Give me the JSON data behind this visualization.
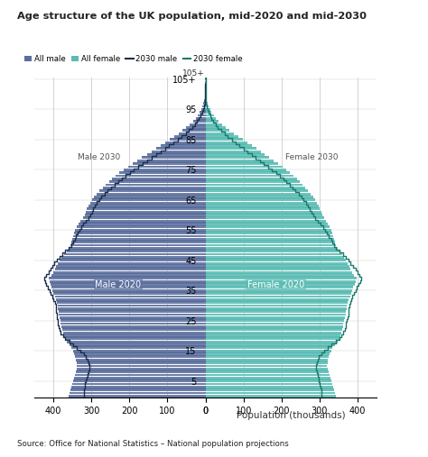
{
  "title": "Age structure of the UK population, mid-2020 and mid-2030",
  "source": "Source: Office for National Statistics – National population projections",
  "xlabel": "Population (thousands)",
  "male_label_2020": "Male 2020",
  "female_label_2020": "Female 2020",
  "male_label_2030": "Male 2030",
  "female_label_2030": "Female 2030",
  "legend_labels": [
    "All male",
    "All female",
    "2030 male",
    "2030 female"
  ],
  "color_male_2020": "#5a6e9c",
  "color_female_2020": "#5bbcb4",
  "color_male_2030_line": "#1a2e4a",
  "color_female_2030_line": "#1a7a6a",
  "bg_color": "#ffffff",
  "grid_color": "#cccccc",
  "xlim": 450,
  "male_2020": [
    360,
    358,
    355,
    352,
    350,
    348,
    345,
    343,
    341,
    339,
    338,
    339,
    340,
    342,
    345,
    348,
    352,
    358,
    365,
    370,
    373,
    375,
    377,
    378,
    380,
    382,
    384,
    385,
    386,
    387,
    388,
    390,
    393,
    396,
    399,
    402,
    405,
    408,
    410,
    412,
    405,
    400,
    396,
    392,
    388,
    383,
    378,
    372,
    365,
    358,
    355,
    352,
    350,
    348,
    345,
    342,
    338,
    333,
    328,
    322,
    318,
    315,
    312,
    308,
    303,
    298,
    292,
    285,
    278,
    270,
    262,
    253,
    245,
    236,
    226,
    215,
    204,
    192,
    180,
    167,
    154,
    142,
    130,
    118,
    106,
    93,
    81,
    70,
    60,
    50,
    41,
    33,
    26,
    20,
    15,
    11,
    8,
    5,
    3,
    2,
    1,
    0.7,
    0.4,
    0.2,
    0.1,
    0.05
  ],
  "female_2020": [
    343,
    341,
    338,
    336,
    333,
    331,
    328,
    326,
    323,
    321,
    320,
    321,
    322,
    324,
    327,
    330,
    334,
    340,
    347,
    352,
    355,
    357,
    359,
    361,
    363,
    365,
    367,
    368,
    370,
    371,
    372,
    374,
    377,
    380,
    383,
    386,
    389,
    392,
    395,
    397,
    391,
    386,
    382,
    378,
    374,
    370,
    365,
    360,
    354,
    347,
    343,
    340,
    338,
    336,
    333,
    330,
    327,
    322,
    317,
    311,
    307,
    304,
    301,
    297,
    293,
    289,
    283,
    277,
    270,
    263,
    256,
    248,
    241,
    232,
    223,
    213,
    202,
    191,
    180,
    167,
    156,
    145,
    134,
    122,
    110,
    98,
    86,
    75,
    64,
    53,
    43,
    35,
    28,
    22,
    16,
    12,
    8,
    5,
    3,
    2,
    1,
    0.7,
    0.4,
    0.2,
    0.1,
    0.05
  ],
  "male_2030": [
    320,
    320,
    320,
    318,
    316,
    314,
    311,
    309,
    307,
    305,
    305,
    307,
    310,
    314,
    320,
    328,
    338,
    348,
    358,
    368,
    375,
    380,
    383,
    385,
    387,
    388,
    390,
    391,
    392,
    393,
    394,
    396,
    399,
    402,
    406,
    410,
    414,
    418,
    421,
    424,
    418,
    413,
    408,
    403,
    397,
    391,
    384,
    376,
    368,
    359,
    352,
    348,
    344,
    340,
    336,
    332,
    327,
    321,
    315,
    308,
    303,
    299,
    295,
    290,
    285,
    279,
    273,
    265,
    257,
    248,
    238,
    228,
    219,
    209,
    199,
    188,
    177,
    165,
    153,
    141,
    129,
    117,
    106,
    95,
    84,
    73,
    62,
    52,
    43,
    35,
    28,
    22,
    17,
    12,
    9,
    6,
    4,
    2,
    1,
    0.6,
    0.3,
    0.2,
    0.1,
    0.05,
    0.02,
    0.01
  ],
  "female_2030": [
    305,
    305,
    305,
    303,
    301,
    299,
    297,
    295,
    292,
    290,
    290,
    292,
    295,
    299,
    305,
    313,
    322,
    332,
    342,
    352,
    358,
    363,
    366,
    368,
    370,
    372,
    374,
    375,
    376,
    377,
    378,
    380,
    383,
    386,
    390,
    394,
    398,
    402,
    406,
    409,
    404,
    399,
    394,
    388,
    382,
    376,
    369,
    361,
    353,
    344,
    338,
    334,
    330,
    325,
    320,
    315,
    309,
    303,
    296,
    288,
    283,
    279,
    274,
    269,
    264,
    258,
    252,
    245,
    237,
    229,
    222,
    213,
    205,
    195,
    186,
    175,
    165,
    154,
    143,
    132,
    121,
    110,
    100,
    89,
    79,
    69,
    59,
    50,
    41,
    33,
    27,
    21,
    16,
    12,
    8,
    6,
    4,
    2,
    1,
    0.6,
    0.3,
    0.2,
    0.1,
    0.05,
    0.02,
    0.01
  ]
}
